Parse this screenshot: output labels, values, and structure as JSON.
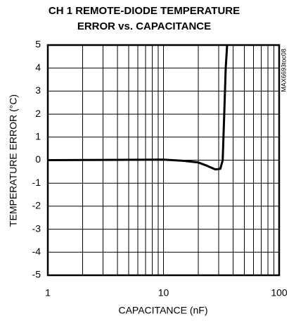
{
  "chart_data": {
    "type": "line",
    "title": [
      "CH 1 REMOTE-DIODE TEMPERATURE",
      "ERROR vs. CAPACITANCE"
    ],
    "x_label": "CAPACITANCE (nF)",
    "y_label": "TEMPERATURE ERROR (°C)",
    "annotation": "MAX6693toc08",
    "x_scale": "log",
    "xlim": [
      1,
      100
    ],
    "xticks": [
      1,
      10,
      100
    ],
    "xminorticks": [
      2,
      3,
      4,
      5,
      6,
      7,
      8,
      9,
      20,
      30,
      40,
      50,
      60,
      70,
      80,
      90
    ],
    "ylim": [
      -5,
      5
    ],
    "yticks": [
      5,
      4,
      3,
      2,
      1,
      0,
      -1,
      -2,
      -3,
      -4,
      -5
    ],
    "grid": true,
    "series": [
      {
        "color": "#000000",
        "x": [
          1,
          10,
          12,
          15,
          20,
          24,
          28,
          31,
          32.5,
          33.5,
          34.5,
          35.5
        ],
        "values": [
          0,
          0.02,
          0,
          -0.03,
          -0.1,
          -0.25,
          -0.4,
          -0.38,
          0,
          2,
          4,
          5
        ]
      }
    ]
  }
}
